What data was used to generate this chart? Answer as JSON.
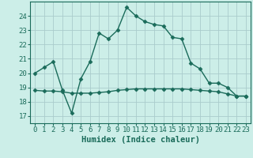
{
  "xlabel": "Humidex (Indice chaleur)",
  "background_color": "#cceee8",
  "grid_color": "#aacccc",
  "line_color": "#1a6b5a",
  "xlim": [
    -0.5,
    23.5
  ],
  "ylim": [
    16.5,
    25.0
  ],
  "yticks": [
    17,
    18,
    19,
    20,
    21,
    22,
    23,
    24
  ],
  "xticks": [
    0,
    1,
    2,
    3,
    4,
    5,
    6,
    7,
    8,
    9,
    10,
    11,
    12,
    13,
    14,
    15,
    16,
    17,
    18,
    19,
    20,
    21,
    22,
    23
  ],
  "series1_x": [
    0,
    1,
    2,
    3,
    4,
    5,
    6,
    7,
    8,
    9,
    10,
    11,
    12,
    13,
    14,
    15,
    16,
    17,
    18,
    19,
    20,
    21,
    22,
    23
  ],
  "series1_y": [
    20.0,
    20.4,
    20.8,
    18.8,
    17.2,
    19.6,
    20.8,
    22.8,
    22.4,
    23.0,
    24.6,
    24.0,
    23.6,
    23.4,
    23.3,
    22.5,
    22.4,
    20.7,
    20.3,
    19.3,
    19.3,
    19.0,
    18.4,
    18.4
  ],
  "series2_x": [
    0,
    1,
    2,
    3,
    4,
    5,
    6,
    7,
    8,
    9,
    10,
    11,
    12,
    13,
    14,
    15,
    16,
    17,
    18,
    19,
    20,
    21,
    22,
    23
  ],
  "series2_y": [
    18.8,
    18.75,
    18.75,
    18.7,
    18.6,
    18.6,
    18.6,
    18.65,
    18.7,
    18.8,
    18.85,
    18.9,
    18.9,
    18.9,
    18.9,
    18.9,
    18.9,
    18.85,
    18.8,
    18.75,
    18.7,
    18.55,
    18.4,
    18.4
  ],
  "marker": "D",
  "marker_size": 2.5,
  "line_width": 1.0,
  "font_size_ticks": 6.5,
  "font_size_label": 7.5
}
